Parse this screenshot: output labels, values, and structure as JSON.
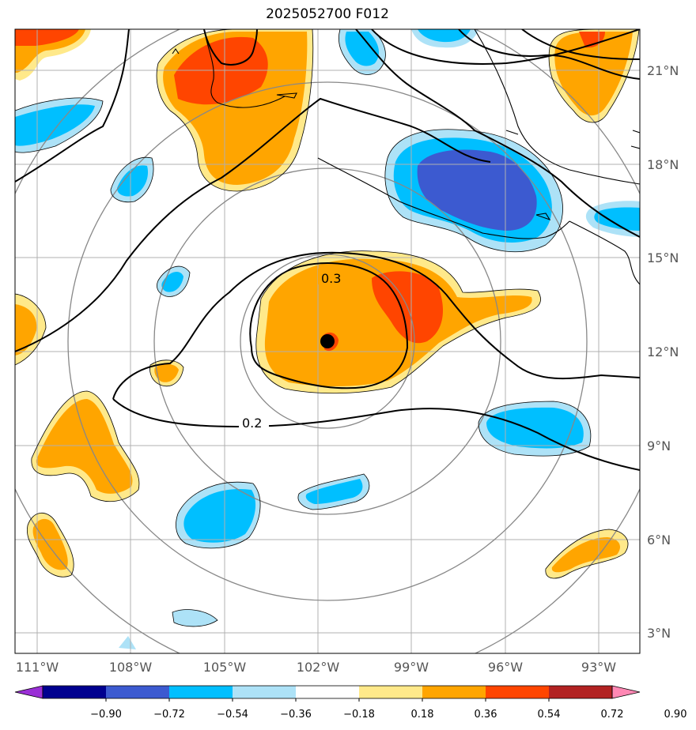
{
  "title": "2025052700 F012",
  "latitude_labels": [
    "21°N",
    "18°N",
    "15°N",
    "12°N",
    "9°N",
    "6°N",
    "3°N"
  ],
  "longitude_labels": [
    "111°W",
    "108°W",
    "105°W",
    "102°W",
    "99°W",
    "96°W",
    "93°W"
  ],
  "contour_labels": [
    "0.3",
    "0.2"
  ],
  "colorbar": {
    "ticks": [
      "−0.90",
      "−0.72",
      "−0.54",
      "−0.36",
      "−0.18",
      "0.18",
      "0.36",
      "0.54",
      "0.72",
      "0.90"
    ],
    "colors": [
      "#9a2fd6",
      "#00008f",
      "#3c5ad0",
      "#00bfff",
      "#ade2f7",
      "#ffffff",
      "#ffe98a",
      "#ffa500",
      "#ff4500",
      "#b22222",
      "#ff88b4"
    ]
  },
  "storm_center": {
    "lat": 12.3,
    "lon": -101.7
  }
}
